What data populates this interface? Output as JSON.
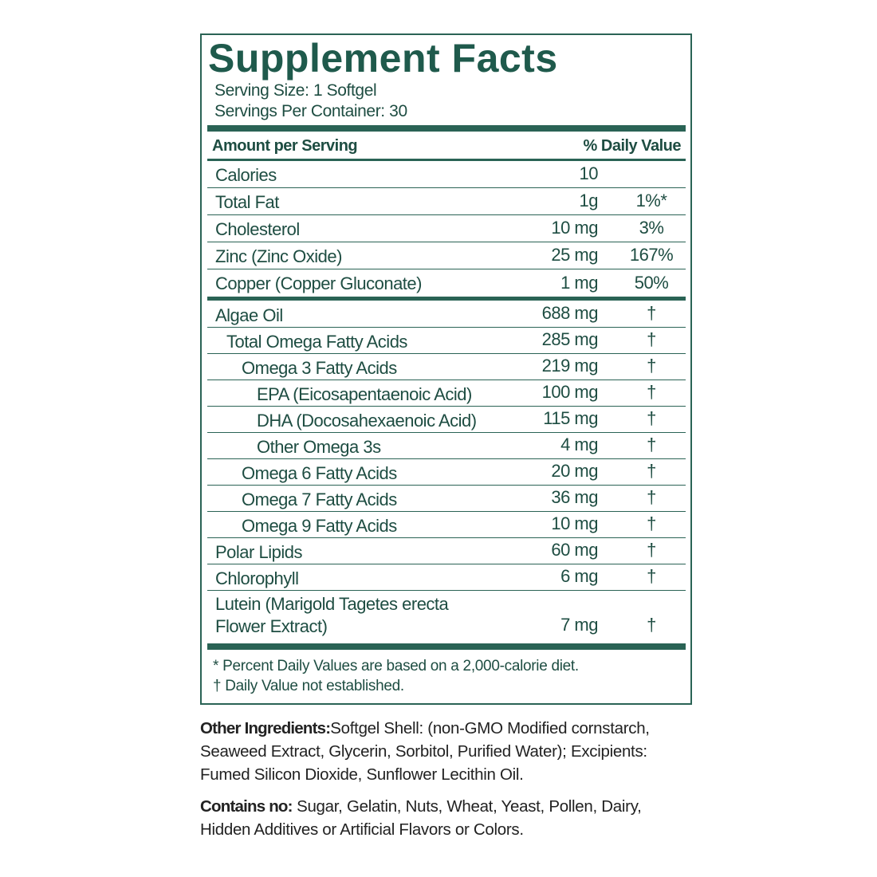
{
  "label": {
    "title": "Supplement Facts",
    "serving_size": "Serving Size: 1 Softgel",
    "servings_per_container": "Servings Per Container: 30",
    "header": {
      "amount": "Amount per Serving",
      "daily_value": "% Daily Value"
    },
    "rows": [
      {
        "name": "Calories",
        "amount": "10",
        "daily_value": ""
      },
      {
        "name": "Total Fat",
        "amount": "1g",
        "daily_value": "1%*"
      },
      {
        "name": "Cholesterol",
        "amount": "10 mg",
        "daily_value": "3%"
      },
      {
        "name": "Zinc (Zinc Oxide)",
        "amount": "25 mg",
        "daily_value": "167%"
      },
      {
        "name": "Copper (Copper Gluconate)",
        "amount": "1 mg",
        "daily_value": "50%"
      }
    ],
    "rows2": [
      {
        "name": "Algae Oil",
        "amount": "688 mg",
        "daily_value": "†"
      },
      {
        "name": "Total Omega Fatty Acids",
        "amount": "285 mg",
        "daily_value": "†"
      },
      {
        "name": "Omega 3 Fatty Acids",
        "amount": "219 mg",
        "daily_value": "†"
      },
      {
        "name": "EPA (Eicosapentaenoic Acid)",
        "amount": "100 mg",
        "daily_value": "†"
      },
      {
        "name": "DHA (Docosahexaenoic Acid)",
        "amount": "115 mg",
        "daily_value": "†"
      },
      {
        "name": "Other Omega 3s",
        "amount": "4 mg",
        "daily_value": "†"
      },
      {
        "name": "Omega 6 Fatty Acids",
        "amount": "20 mg",
        "daily_value": "†"
      },
      {
        "name": "Omega 7 Fatty Acids",
        "amount": "36 mg",
        "daily_value": "†"
      },
      {
        "name": "Omega 9 Fatty Acids",
        "amount": "10 mg",
        "daily_value": "†"
      },
      {
        "name": "Polar Lipids",
        "amount": "60 mg",
        "daily_value": "†"
      },
      {
        "name": "Chlorophyll",
        "amount": "6 mg",
        "daily_value": "†"
      },
      {
        "name": "Lutein (Marigold Tagetes erecta Flower Extract)",
        "amount": "7 mg",
        "daily_value": "†"
      }
    ],
    "footnotes": [
      "*  Percent Daily Values are based on a 2,000-calorie diet.",
      "† Daily Value not established."
    ]
  },
  "other_ingredients": {
    "label": "Other Ingredients:",
    "text": "Softgel Shell: (non-GMO Modified cornstarch, Seaweed Extract, Glycerin, Sorbitol, Purified Water); Excipients:  Fumed Silicon Dioxide, Sunflower Lecithin Oil."
  },
  "contains_no": {
    "label": "Contains no:",
    "text": "Sugar, Gelatin, Nuts, Wheat, Yeast, Pollen, Dairy, Hidden Additives or Artificial Flavors or Colors."
  }
}
